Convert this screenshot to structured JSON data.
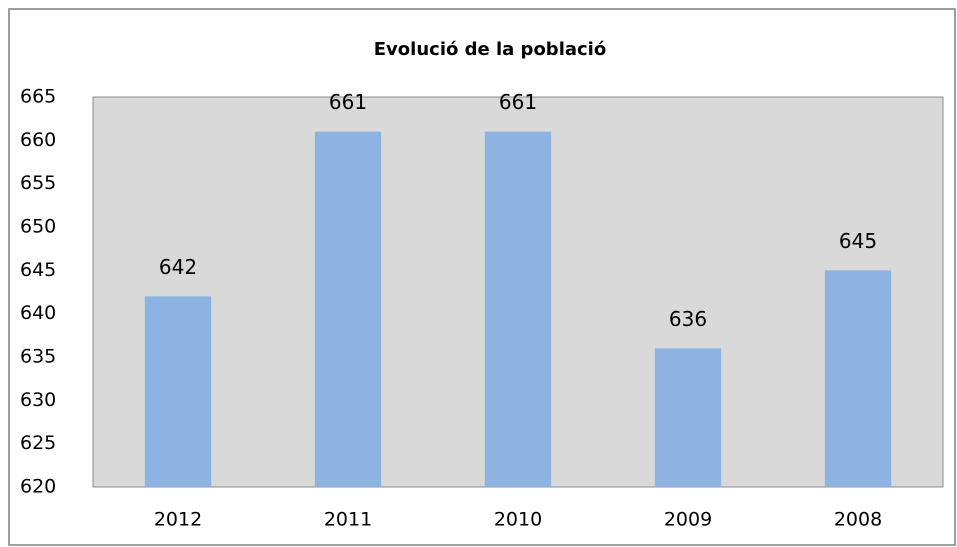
{
  "chart_data": {
    "type": "bar",
    "title": "Evolució de la població",
    "categories": [
      "2012",
      "2011",
      "2010",
      "2009",
      "2008"
    ],
    "values": [
      642,
      661,
      661,
      636,
      645
    ],
    "color": "#8db3e2",
    "ylim": [
      620,
      665
    ],
    "yticks": [
      620,
      625,
      630,
      635,
      640,
      645,
      650,
      655,
      660,
      665
    ],
    "grid": false
  }
}
